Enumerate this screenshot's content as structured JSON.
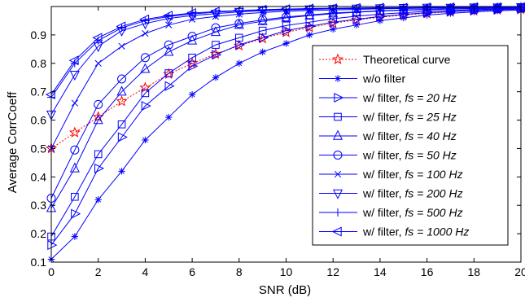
{
  "chart_data": {
    "type": "line",
    "xlabel": "SNR (dB)",
    "ylabel": "Average CorrCoeff",
    "xlim": [
      0,
      20
    ],
    "ylim": [
      0.1,
      1.0
    ],
    "xticks": [
      0,
      2,
      4,
      6,
      8,
      10,
      12,
      14,
      16,
      18,
      20
    ],
    "xtick_labels": [
      "0",
      "2",
      "4",
      "6",
      "8",
      "10",
      "12",
      "14",
      "16",
      "18",
      "20"
    ],
    "yticks": [
      0.1,
      0.2,
      0.3,
      0.4,
      0.5,
      0.6,
      0.7,
      0.8,
      0.9
    ],
    "ytick_labels": [
      "0.1",
      "0.2",
      "0.3",
      "0.4",
      "0.5",
      "0.6",
      "0.7",
      "0.8",
      "0.9"
    ],
    "grid": false,
    "legend_position": "bottom-right",
    "x": [
      0,
      1,
      2,
      3,
      4,
      5,
      6,
      7,
      8,
      9,
      10,
      11,
      12,
      13,
      14,
      15,
      16,
      17,
      18,
      19,
      20
    ],
    "series": [
      {
        "name": "Theoretical curve",
        "legend_parts": [
          {
            "text": "Theoretical curve",
            "italic": false
          }
        ],
        "color": "#ff0000",
        "dash": "dotted",
        "marker": "star",
        "values": [
          0.5,
          0.556,
          0.611,
          0.666,
          0.714,
          0.762,
          0.8,
          0.833,
          0.862,
          0.887,
          0.909,
          0.926,
          0.941,
          0.953,
          0.962,
          0.97,
          0.976,
          0.981,
          0.985,
          0.988,
          0.99
        ]
      },
      {
        "name": "w/o filter",
        "legend_parts": [
          {
            "text": "w/o filter",
            "italic": false
          }
        ],
        "color": "#0000ff",
        "dash": "solid",
        "marker": "asterisk",
        "values": [
          0.11,
          0.19,
          0.32,
          0.42,
          0.53,
          0.61,
          0.69,
          0.75,
          0.8,
          0.84,
          0.87,
          0.9,
          0.92,
          0.935,
          0.95,
          0.96,
          0.97,
          0.976,
          0.981,
          0.985,
          0.988
        ]
      },
      {
        "name": "w/ filter, fs = 20 Hz",
        "legend_parts": [
          {
            "text": "w/ filter, ",
            "italic": false
          },
          {
            "text": "fs = 20 Hz",
            "italic": true
          }
        ],
        "color": "#0000ff",
        "dash": "solid",
        "marker": "triangle-right",
        "values": [
          0.16,
          0.27,
          0.43,
          0.54,
          0.65,
          0.72,
          0.79,
          0.83,
          0.865,
          0.89,
          0.915,
          0.93,
          0.945,
          0.955,
          0.965,
          0.972,
          0.978,
          0.982,
          0.986,
          0.989,
          0.991
        ]
      },
      {
        "name": "w/ filter, fs = 25 Hz",
        "legend_parts": [
          {
            "text": "w/ filter, ",
            "italic": false
          },
          {
            "text": "fs = 25 Hz",
            "italic": true
          }
        ],
        "color": "#0000ff",
        "dash": "solid",
        "marker": "square",
        "values": [
          0.19,
          0.33,
          0.48,
          0.585,
          0.695,
          0.765,
          0.82,
          0.865,
          0.89,
          0.915,
          0.933,
          0.945,
          0.957,
          0.966,
          0.973,
          0.978,
          0.983,
          0.986,
          0.989,
          0.991,
          0.993
        ]
      },
      {
        "name": "w/ filter, fs = 40 Hz",
        "legend_parts": [
          {
            "text": "w/ filter, ",
            "italic": false
          },
          {
            "text": "fs = 40 Hz",
            "italic": true
          }
        ],
        "color": "#0000ff",
        "dash": "solid",
        "marker": "triangle-up",
        "values": [
          0.29,
          0.43,
          0.6,
          0.7,
          0.78,
          0.84,
          0.88,
          0.91,
          0.935,
          0.948,
          0.96,
          0.968,
          0.975,
          0.98,
          0.984,
          0.987,
          0.989,
          0.991,
          0.993,
          0.994,
          0.995
        ]
      },
      {
        "name": "w/ filter, fs = 50 Hz",
        "legend_parts": [
          {
            "text": "w/ filter, ",
            "italic": false
          },
          {
            "text": "fs = 50 Hz",
            "italic": true
          }
        ],
        "color": "#0000ff",
        "dash": "solid",
        "marker": "circle",
        "values": [
          0.325,
          0.495,
          0.655,
          0.745,
          0.82,
          0.865,
          0.895,
          0.925,
          0.94,
          0.953,
          0.963,
          0.97,
          0.977,
          0.981,
          0.985,
          0.988,
          0.99,
          0.992,
          0.993,
          0.994,
          0.995
        ]
      },
      {
        "name": "w/ filter, fs = 100 Hz",
        "legend_parts": [
          {
            "text": "w/ filter, ",
            "italic": false
          },
          {
            "text": "fs = 100 Hz",
            "italic": true
          }
        ],
        "color": "#0000ff",
        "dash": "solid",
        "marker": "x",
        "values": [
          0.5,
          0.66,
          0.8,
          0.86,
          0.905,
          0.935,
          0.955,
          0.965,
          0.973,
          0.979,
          0.983,
          0.986,
          0.988,
          0.99,
          0.992,
          0.993,
          0.994,
          0.995,
          0.996,
          0.996,
          0.997
        ]
      },
      {
        "name": "w/ filter, fs = 200 Hz",
        "legend_parts": [
          {
            "text": "w/ filter, ",
            "italic": false
          },
          {
            "text": "fs = 200 Hz",
            "italic": true
          }
        ],
        "color": "#0000ff",
        "dash": "solid",
        "marker": "triangle-down",
        "values": [
          0.62,
          0.76,
          0.86,
          0.915,
          0.94,
          0.958,
          0.968,
          0.975,
          0.981,
          0.985,
          0.988,
          0.99,
          0.992,
          0.993,
          0.994,
          0.995,
          0.996,
          0.996,
          0.997,
          0.997,
          0.998
        ]
      },
      {
        "name": "w/ filter, fs = 500 Hz",
        "legend_parts": [
          {
            "text": "w/ filter, ",
            "italic": false
          },
          {
            "text": "fs = 500 Hz",
            "italic": true
          }
        ],
        "color": "#0000ff",
        "dash": "solid",
        "marker": "plus",
        "values": [
          0.68,
          0.8,
          0.88,
          0.925,
          0.95,
          0.965,
          0.974,
          0.98,
          0.985,
          0.988,
          0.99,
          0.992,
          0.993,
          0.994,
          0.995,
          0.996,
          0.996,
          0.997,
          0.997,
          0.998,
          0.998
        ]
      },
      {
        "name": "w/ filter, fs = 1000 Hz",
        "legend_parts": [
          {
            "text": "w/ filter, ",
            "italic": false
          },
          {
            "text": "fs = 1000 Hz",
            "italic": true
          }
        ],
        "color": "#0000ff",
        "dash": "solid",
        "marker": "triangle-left",
        "values": [
          0.69,
          0.81,
          0.89,
          0.93,
          0.955,
          0.968,
          0.977,
          0.982,
          0.986,
          0.989,
          0.991,
          0.993,
          0.994,
          0.995,
          0.996,
          0.996,
          0.997,
          0.997,
          0.998,
          0.998,
          0.998
        ]
      }
    ]
  }
}
